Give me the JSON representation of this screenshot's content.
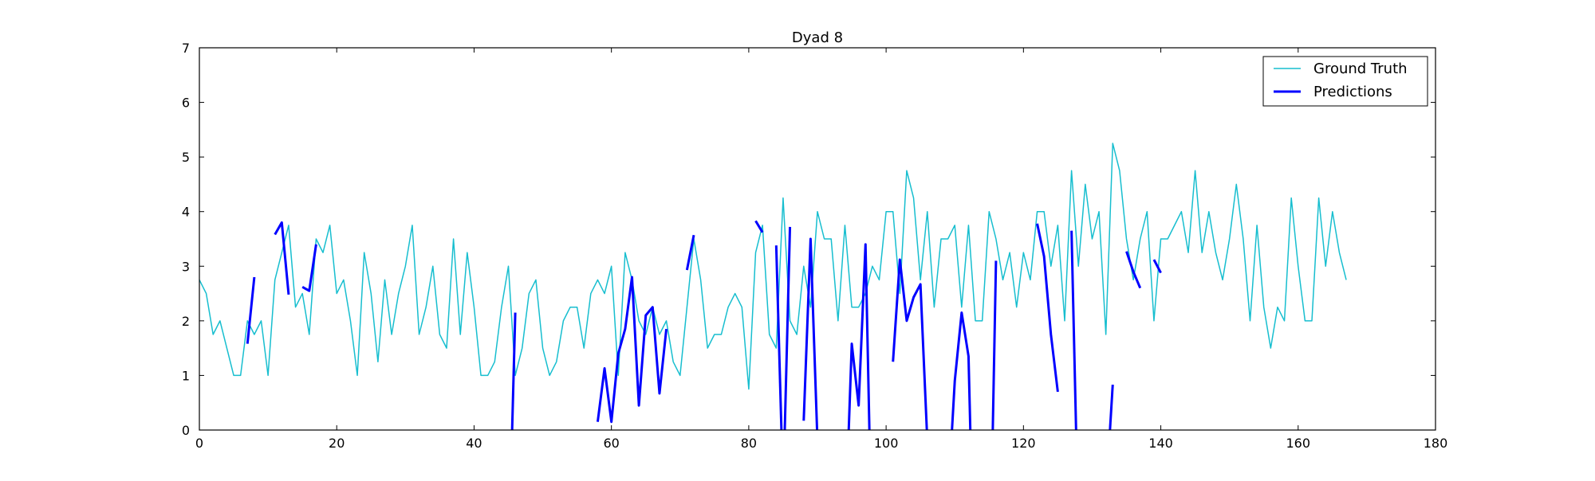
{
  "chart_data": {
    "type": "line",
    "title": "Dyad 8",
    "xlabel": "",
    "ylabel": "",
    "xlim": [
      0,
      180
    ],
    "ylim": [
      0,
      7
    ],
    "xticks": [
      0,
      20,
      40,
      60,
      80,
      100,
      120,
      140,
      160,
      180
    ],
    "yticks": [
      0,
      1,
      2,
      3,
      4,
      5,
      6,
      7
    ],
    "grid": false,
    "legend_position": "top-right",
    "series": [
      {
        "name": "Ground Truth",
        "color": "#17becf",
        "x": [
          0,
          1,
          2,
          3,
          4,
          5,
          6,
          7,
          8,
          9,
          10,
          11,
          12,
          13,
          14,
          15,
          16,
          17,
          18,
          19,
          20,
          21,
          22,
          23,
          24,
          25,
          26,
          27,
          28,
          29,
          30,
          31,
          32,
          33,
          34,
          35,
          36,
          37,
          38,
          39,
          40,
          41,
          42,
          43,
          44,
          45,
          46,
          47,
          48,
          49,
          50,
          51,
          52,
          53,
          54,
          55,
          56,
          57,
          58,
          59,
          60,
          61,
          62,
          63,
          64,
          65,
          66,
          67,
          68,
          69,
          70,
          71,
          72,
          73,
          74,
          75,
          76,
          77,
          78,
          79,
          80,
          81,
          82,
          83,
          84,
          85,
          86,
          87,
          88,
          89,
          90,
          91,
          92,
          93,
          94,
          95,
          96,
          97,
          98,
          99,
          100,
          101,
          102,
          103,
          104,
          105,
          106,
          107,
          108,
          109,
          110,
          111,
          112,
          113,
          114,
          115,
          116,
          117,
          118,
          119,
          120,
          121,
          122,
          123,
          124,
          125,
          126,
          127,
          128,
          129,
          130,
          131,
          132,
          133,
          134,
          135,
          136,
          137,
          138,
          139,
          140,
          141,
          142,
          143,
          144,
          145,
          146,
          147,
          148,
          149,
          150,
          151,
          152,
          153,
          154,
          155,
          156,
          157,
          158,
          159,
          160,
          161,
          162,
          163,
          164,
          165,
          166,
          167
        ],
        "y": [
          2.75,
          2.5,
          1.75,
          2.0,
          1.5,
          1.0,
          1.0,
          2.0,
          1.75,
          2.0,
          1.0,
          2.75,
          3.25,
          3.75,
          2.25,
          2.5,
          1.75,
          3.5,
          3.25,
          3.75,
          2.5,
          2.75,
          2.0,
          1.0,
          3.25,
          2.5,
          1.25,
          2.75,
          1.75,
          2.5,
          3.0,
          3.75,
          1.75,
          2.25,
          3.0,
          1.75,
          1.5,
          3.5,
          1.75,
          3.25,
          2.25,
          1.0,
          1.0,
          1.25,
          2.25,
          3.0,
          1.0,
          1.5,
          2.5,
          2.75,
          1.5,
          1.0,
          1.25,
          2.0,
          2.25,
          2.25,
          1.5,
          2.5,
          2.75,
          2.5,
          3.0,
          1.0,
          3.25,
          2.75,
          2.0,
          1.75,
          2.25,
          1.75,
          2.0,
          1.25,
          1.0,
          2.25,
          3.5,
          2.75,
          1.5,
          1.75,
          1.75,
          2.25,
          2.5,
          2.25,
          0.75,
          3.25,
          3.75,
          1.75,
          1.5,
          4.25,
          2.0,
          1.75,
          3.0,
          2.25,
          4.0,
          3.5,
          3.5,
          2.0,
          3.75,
          2.25,
          2.25,
          2.5,
          3.0,
          2.75,
          4.0,
          4.0,
          2.5,
          4.75,
          4.25,
          2.75,
          4.0,
          2.25,
          3.5,
          3.5,
          3.75,
          2.25,
          3.75,
          2.0,
          2.0,
          4.0,
          3.5,
          2.75,
          3.25,
          2.25,
          3.25,
          2.75,
          4.0,
          4.0,
          3.0,
          3.75,
          2.0,
          4.75,
          3.0,
          4.5,
          3.5,
          4.0,
          1.75,
          5.25,
          4.75,
          3.5,
          2.75,
          3.5,
          4.0,
          2.0,
          3.5,
          3.5,
          3.75,
          4.0,
          3.25,
          4.75,
          3.25,
          4.0,
          3.25,
          2.75,
          3.5,
          4.5,
          3.5,
          2.0,
          3.75,
          2.25,
          1.5,
          2.25,
          2.0,
          4.25,
          3.0,
          2.0,
          2.0,
          4.25,
          3.0,
          4.0,
          3.25,
          2.75
        ]
      },
      {
        "name": "Predictions",
        "color": "#0000ff",
        "segments": [
          {
            "x": [
              7,
              8
            ],
            "y": [
              1.58,
              2.8
            ]
          },
          {
            "x": [
              11,
              12,
              13
            ],
            "y": [
              3.58,
              3.8,
              2.48
            ]
          },
          {
            "x": [
              15,
              16,
              17
            ],
            "y": [
              2.62,
              2.55,
              3.4
            ]
          },
          {
            "x": [
              45.5,
              46
            ],
            "y": [
              -0.2,
              2.15
            ]
          },
          {
            "x": [
              58,
              59,
              60,
              61,
              62,
              63,
              64,
              65,
              66,
              67,
              68
            ],
            "y": [
              0.15,
              1.13,
              0.15,
              1.4,
              1.85,
              2.8,
              0.45,
              2.1,
              2.25,
              0.67,
              1.85
            ]
          },
          {
            "x": [
              71,
              72
            ],
            "y": [
              2.93,
              3.57
            ]
          },
          {
            "x": [
              81,
              82
            ],
            "y": [
              3.83,
              3.62
            ]
          },
          {
            "x": [
              84,
              84.8
            ],
            "y": [
              3.38,
              -0.2
            ]
          },
          {
            "x": [
              85.2,
              86
            ],
            "y": [
              -0.2,
              3.72
            ]
          },
          {
            "x": [
              88,
              89,
              90
            ],
            "y": [
              0.17,
              3.5,
              -0.2
            ]
          },
          {
            "x": [
              94.5,
              95,
              96,
              97,
              97.6
            ],
            "y": [
              -0.2,
              1.58,
              0.45,
              3.4,
              -0.2
            ]
          },
          {
            "x": [
              101,
              102,
              103,
              104,
              105,
              106
            ],
            "y": [
              1.25,
              3.12,
              2.0,
              2.43,
              2.67,
              -0.2
            ]
          },
          {
            "x": [
              109.5,
              110,
              111,
              112,
              112.3
            ],
            "y": [
              -0.2,
              0.9,
              2.15,
              1.35,
              -0.2
            ]
          },
          {
            "x": [
              115.5,
              116
            ],
            "y": [
              -0.2,
              3.1
            ]
          },
          {
            "x": [
              122,
              123,
              124,
              125
            ],
            "y": [
              3.78,
              3.18,
              1.75,
              0.7
            ]
          },
          {
            "x": [
              127,
              127.7
            ],
            "y": [
              3.65,
              -0.2
            ]
          },
          {
            "x": [
              132.5,
              133
            ],
            "y": [
              -0.2,
              0.83
            ]
          },
          {
            "x": [
              135,
              136,
              137
            ],
            "y": [
              3.27,
              2.9,
              2.6
            ]
          },
          {
            "x": [
              139,
              140
            ],
            "y": [
              3.12,
              2.88
            ]
          }
        ]
      }
    ]
  }
}
